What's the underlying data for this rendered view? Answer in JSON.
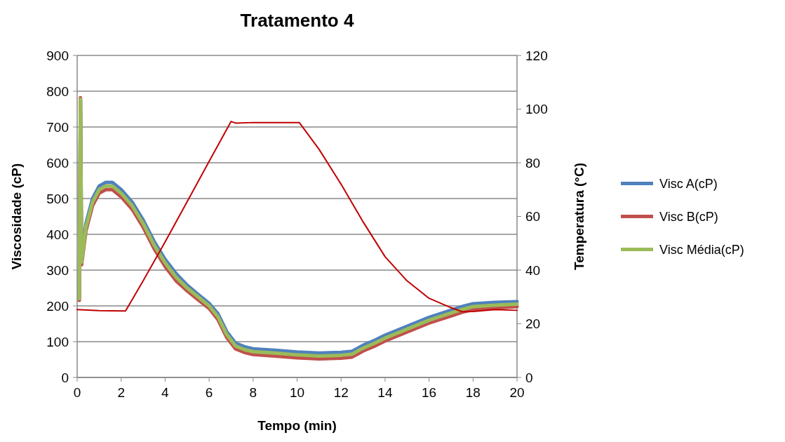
{
  "chart_data": {
    "type": "line",
    "title": "Tratamento 4",
    "xlabel": "Tempo (min)",
    "ylabel": "Viscosidade (cP)",
    "y2label": "Temperatura (°C)",
    "xlim": [
      0,
      20
    ],
    "xticks": [
      0,
      2,
      4,
      6,
      8,
      10,
      12,
      14,
      16,
      18,
      20
    ],
    "ylim": [
      0,
      900
    ],
    "yticks": [
      0,
      100,
      200,
      300,
      400,
      500,
      600,
      700,
      800,
      900
    ],
    "y2lim": [
      0,
      120
    ],
    "y2ticks": [
      0,
      20,
      40,
      60,
      80,
      100,
      120
    ],
    "grid": "y",
    "legend": "right",
    "marker": "none",
    "line_style": "solid",
    "x": [
      0.1,
      0.15,
      0.2,
      0.4,
      0.7,
      1.0,
      1.3,
      1.6,
      2.0,
      2.5,
      3.0,
      3.5,
      4.0,
      4.5,
      5.0,
      5.5,
      6.0,
      6.4,
      6.8,
      7.2,
      7.6,
      8.0,
      9.0,
      10.0,
      11.0,
      12.0,
      12.5,
      13.0,
      13.5,
      14.0,
      15.0,
      16.0,
      17.0,
      17.5,
      18.0,
      19.0,
      20.0
    ],
    "series": [
      {
        "name": "Visc A(cP)",
        "color": "#4f81bd",
        "values": [
          225,
          775,
          330,
          430,
          500,
          535,
          545,
          545,
          525,
          490,
          440,
          380,
          330,
          290,
          258,
          232,
          207,
          178,
          128,
          96,
          86,
          80,
          76,
          71,
          68,
          70,
          73,
          90,
          103,
          118,
          143,
          168,
          188,
          198,
          206,
          210,
          212
        ]
      },
      {
        "name": "Visc B(cP)",
        "color": "#c0504d",
        "values": [
          215,
          782,
          315,
          410,
          480,
          515,
          525,
          525,
          505,
          470,
          420,
          360,
          310,
          270,
          242,
          217,
          193,
          162,
          112,
          80,
          70,
          64,
          60,
          55,
          52,
          54,
          57,
          74,
          87,
          102,
          127,
          152,
          172,
          182,
          190,
          194,
          198
        ]
      },
      {
        "name": "Visc Média(cP)",
        "color": "#9bbb59",
        "values": [
          220,
          778,
          322,
          420,
          490,
          525,
          535,
          535,
          515,
          480,
          430,
          370,
          320,
          280,
          250,
          225,
          200,
          170,
          120,
          88,
          78,
          72,
          68,
          63,
          60,
          62,
          65,
          82,
          95,
          110,
          135,
          160,
          180,
          190,
          198,
          202,
          205
        ]
      },
      {
        "axis": "y2",
        "color": "#c00000",
        "x": [
          0,
          1,
          2.2,
          3,
          4,
          5,
          6,
          7,
          7.2,
          8,
          9,
          10.1,
          11,
          12,
          13,
          14,
          15,
          16,
          17,
          17.5,
          18,
          19,
          20
        ],
        "values": [
          25.3,
          24.9,
          24.8,
          36,
          50.5,
          65.5,
          80.5,
          95.4,
          94.8,
          95,
          95,
          95,
          85,
          72,
          58,
          45,
          36,
          29.5,
          26,
          24.5,
          24.6,
          25.3,
          25
        ]
      }
    ]
  }
}
